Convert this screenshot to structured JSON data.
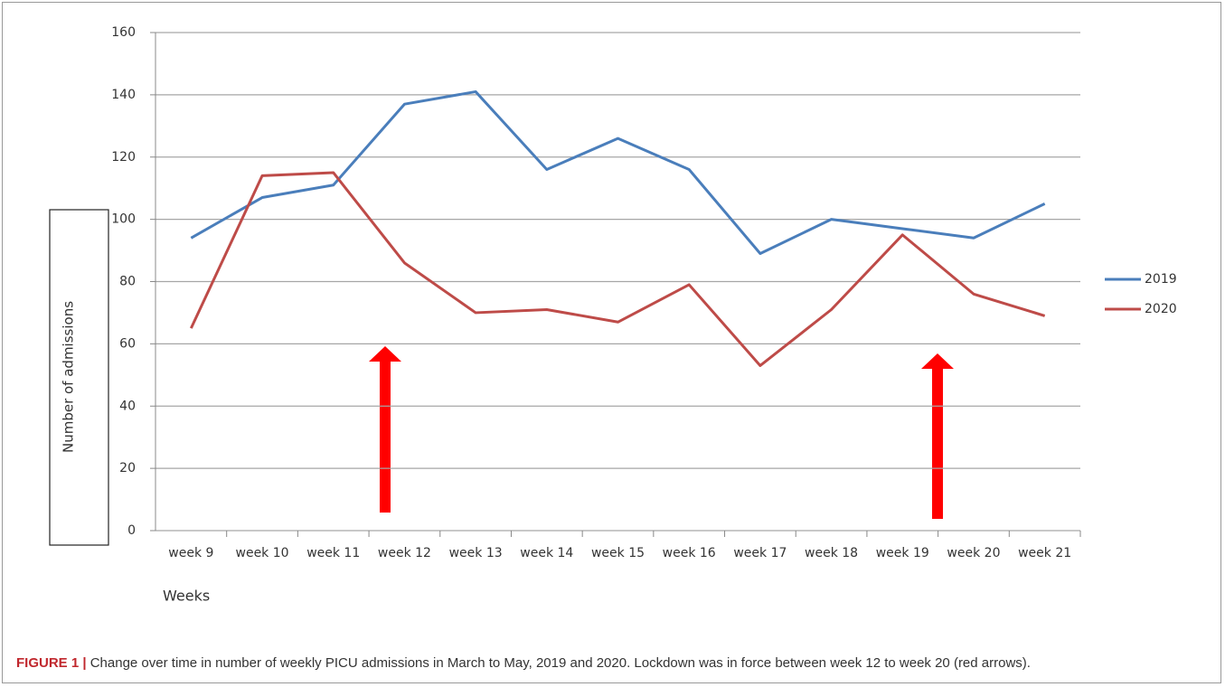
{
  "chart_data": {
    "type": "line",
    "y_label": "Number of admissions",
    "x_label": "Weeks",
    "categories": [
      "week 9",
      "week 10",
      "week 11",
      "week 12",
      "week 13",
      "week 14",
      "week 15",
      "week 16",
      "week 17",
      "week 18",
      "week 19",
      "week 20",
      "week 21"
    ],
    "series": [
      {
        "name": "2019",
        "color": "#4a7ebb",
        "values": [
          94,
          107,
          111,
          137,
          141,
          116,
          126,
          116,
          89,
          100,
          97,
          94,
          105
        ]
      },
      {
        "name": "2020",
        "color": "#be4b48",
        "values": [
          65,
          114,
          115,
          86,
          70,
          71,
          67,
          79,
          53,
          71,
          95,
          76,
          69
        ]
      }
    ],
    "ylim": [
      0,
      160
    ],
    "yticks": [
      0,
      20,
      40,
      60,
      80,
      100,
      120,
      140,
      160
    ],
    "grid": true,
    "legend": "right"
  },
  "caption": {
    "label": "FIGURE 1 |",
    "text": "Change over time in number of weekly PICU admissions in March to May, 2019 and 2020. Lockdown was in force between week 12 to week 20 (red arrows)."
  }
}
